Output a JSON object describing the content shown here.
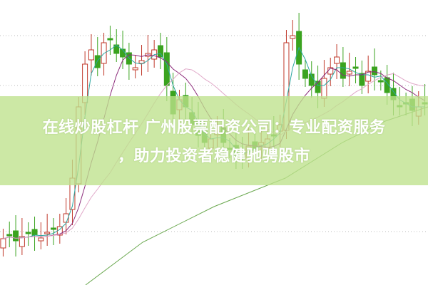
{
  "title": {
    "line1": "在线炒股杠杆 广州股票配资公司：专业配资服务",
    "line2": "，助力投资者稳健驰骋股市"
  },
  "colors": {
    "up": "#c0392b",
    "down": "#3aa31f",
    "banner": "#bee18c",
    "ma_short": "#2aa6a0",
    "ma_mid": "#8b2a7a",
    "ma_long": "#e0a8c8",
    "ma_longest": "#6aa84f"
  }
}
